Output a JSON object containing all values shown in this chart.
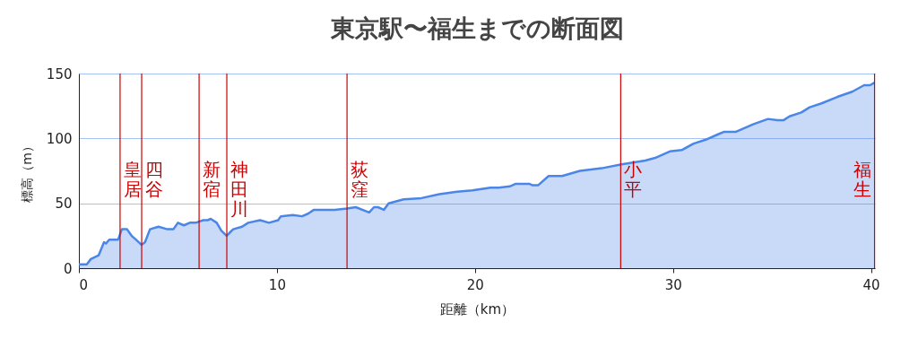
{
  "chart_data": {
    "type": "area",
    "title": "東京駅〜福生までの断面図",
    "xlabel": "距離（km）",
    "ylabel": "標高（m）",
    "series": [
      {
        "color": "#4a86e8",
        "x": [
          0,
          0.4,
          0.6,
          1.0,
          1.27,
          1.37,
          1.53,
          1.75,
          1.98,
          2.17,
          2.43,
          2.66,
          2.88,
          3.16,
          3.34,
          3.59,
          4.02,
          4.47,
          4.77,
          5.0,
          5.3,
          5.6,
          5.9,
          6.28,
          6.5,
          6.66,
          6.96,
          7.19,
          7.46,
          7.79,
          8.24,
          8.55,
          9.15,
          9.6,
          10.06,
          10.2,
          10.8,
          11.27,
          11.57,
          11.87,
          12.92,
          13.53,
          13.98,
          14.66,
          14.9,
          15.1,
          15.4,
          15.64,
          16.4,
          17.3,
          18.2,
          19.1,
          19.87,
          20.78,
          21.2,
          21.76,
          22.06,
          22.74,
          22.89,
          23.2,
          23.72,
          24.4,
          25.3,
          26.4,
          27.4,
          28.6,
          29.1,
          29.84,
          30.44,
          31.04,
          31.65,
          32.25,
          32.56,
          33.16,
          34.07,
          34.8,
          35.27,
          35.58,
          35.88,
          36.48,
          36.9,
          37.5,
          38.3,
          39.05,
          39.65,
          39.95,
          40.18
        ],
        "values": [
          3,
          3,
          7,
          10,
          20,
          19,
          22,
          22,
          22,
          30,
          30,
          25,
          22,
          18,
          20,
          30,
          32,
          30,
          30,
          35,
          33,
          35,
          35,
          37,
          37,
          38,
          35,
          29,
          25,
          30,
          32,
          35,
          37,
          35,
          37,
          40,
          41,
          40,
          42,
          45,
          45,
          46,
          47,
          43,
          47,
          47,
          45,
          50,
          53,
          54,
          57,
          59,
          60,
          62,
          62,
          63,
          65,
          65,
          64,
          64,
          71,
          71,
          75,
          77,
          80,
          83,
          85,
          90,
          91,
          96,
          99,
          103,
          105,
          105,
          111,
          115,
          114,
          114,
          117,
          120,
          124,
          127,
          132,
          136,
          141,
          141,
          143
        ]
      }
    ],
    "xlim": [
      0,
      40.2
    ],
    "xticks": [
      0,
      10,
      20,
      30,
      40
    ],
    "ylim": [
      0,
      150
    ],
    "yticks": [
      0,
      50,
      100,
      150
    ],
    "grid": "y",
    "ref_lines": [
      {
        "axis": "x",
        "value": 2.08,
        "label": "皇居",
        "color": "#cc0000"
      },
      {
        "axis": "x",
        "value": 3.17,
        "label": "四谷",
        "color": "#cc0000"
      },
      {
        "axis": "x",
        "value": 6.07,
        "label": "新宿",
        "color": "#cc0000"
      },
      {
        "axis": "x",
        "value": 7.47,
        "label": "神田川",
        "color": "#cc0000"
      },
      {
        "axis": "x",
        "value": 13.54,
        "label": "荻窪",
        "color": "#cc0000"
      },
      {
        "axis": "x",
        "value": 27.36,
        "label": "小平",
        "color": "#cc0000"
      },
      {
        "axis": "x",
        "value": 40.18,
        "label": "福生",
        "color": "#cc0000"
      }
    ]
  }
}
